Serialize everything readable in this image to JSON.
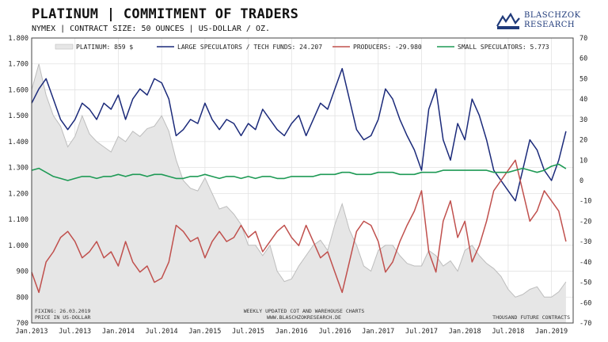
{
  "title": "PLATINUM | COMMITMENT OF TRADERS",
  "subtitle": "NYMEX | CONTRACT SIZE: 50 OUNCES | US-DOLLAR / OZ.",
  "logo": {
    "line1": "BLASCHZOK",
    "line2": "RESEARCH"
  },
  "notes": {
    "fixing": "FIXING: 26.03.2019",
    "price_unit": "PRICE IN US-DOLLAR",
    "center1": "WEEKLY UPDATED COT AND WAREHOUSE CHARTS",
    "center2": "WWW.BLASCHZOKRESEARCH.DE",
    "right": "THOUSAND FUTURE CONTRACTS"
  },
  "colors": {
    "platinum_fill": "#e6e6e6",
    "platinum_line": "#bdbdbd",
    "speculators": "#1b2a7a",
    "producers": "#c0504d",
    "small": "#1e9a55"
  },
  "chart_data": {
    "type": "line",
    "x_tick_labels": [
      "Jan.2013",
      "Jul.2013",
      "Jan.2014",
      "Jul.2014",
      "Jan.2015",
      "Jul.2015",
      "Jan.2016",
      "Jul.2016",
      "Jan.2017",
      "Jul.2017",
      "Jan.2018",
      "Jul.2018",
      "Jan.2019"
    ],
    "x_range": [
      "2013-01",
      "2019-04"
    ],
    "left_axis": {
      "range": [
        700,
        1800
      ],
      "ticks": [
        "1.800",
        "1.700",
        "1.600",
        "1.500",
        "1.400",
        "1.300",
        "1.200",
        "1.100",
        "1.000",
        "900",
        "800",
        "700"
      ]
    },
    "right_axis": {
      "range": [
        -70,
        70
      ],
      "ticks": [
        "70",
        "60",
        "50",
        "40",
        "30",
        "20",
        "10",
        "0",
        "-10",
        "-20",
        "-30",
        "-40",
        "-50",
        "-60",
        "-70"
      ]
    },
    "series": [
      {
        "name": "PLATINUM: 859 $",
        "axis": "left",
        "style": "area",
        "x": [
          "2013-01",
          "2013-02",
          "2013-03",
          "2013-04",
          "2013-05",
          "2013-06",
          "2013-07",
          "2013-08",
          "2013-09",
          "2013-10",
          "2013-11",
          "2013-12",
          "2014-01",
          "2014-02",
          "2014-03",
          "2014-04",
          "2014-05",
          "2014-06",
          "2014-07",
          "2014-08",
          "2014-09",
          "2014-10",
          "2014-11",
          "2014-12",
          "2015-01",
          "2015-02",
          "2015-03",
          "2015-04",
          "2015-05",
          "2015-06",
          "2015-07",
          "2015-08",
          "2015-09",
          "2015-10",
          "2015-11",
          "2015-12",
          "2016-01",
          "2016-02",
          "2016-03",
          "2016-04",
          "2016-05",
          "2016-06",
          "2016-07",
          "2016-08",
          "2016-09",
          "2016-10",
          "2016-11",
          "2016-12",
          "2017-01",
          "2017-02",
          "2017-03",
          "2017-04",
          "2017-05",
          "2017-06",
          "2017-07",
          "2017-08",
          "2017-09",
          "2017-10",
          "2017-11",
          "2017-12",
          "2018-01",
          "2018-02",
          "2018-03",
          "2018-04",
          "2018-05",
          "2018-06",
          "2018-07",
          "2018-08",
          "2018-09",
          "2018-10",
          "2018-11",
          "2018-12",
          "2019-01",
          "2019-02",
          "2019-03"
        ],
        "values": [
          1600,
          1700,
          1580,
          1500,
          1460,
          1380,
          1420,
          1500,
          1430,
          1400,
          1380,
          1360,
          1420,
          1400,
          1440,
          1420,
          1450,
          1460,
          1500,
          1440,
          1330,
          1250,
          1220,
          1210,
          1260,
          1200,
          1140,
          1150,
          1120,
          1080,
          1000,
          1000,
          960,
          1000,
          900,
          860,
          870,
          920,
          960,
          1000,
          1020,
          980,
          1080,
          1160,
          1060,
          1000,
          920,
          900,
          980,
          1000,
          1000,
          960,
          930,
          920,
          920,
          980,
          960,
          920,
          940,
          900,
          980,
          1000,
          960,
          930,
          910,
          880,
          830,
          800,
          810,
          830,
          840,
          800,
          800,
          820,
          859
        ]
      },
      {
        "name": "LARGE SPECULATORS / TECH FUNDS: 24.207",
        "axis": "right",
        "x": [
          "2013-01",
          "2013-02",
          "2013-03",
          "2013-04",
          "2013-05",
          "2013-06",
          "2013-07",
          "2013-08",
          "2013-09",
          "2013-10",
          "2013-11",
          "2013-12",
          "2014-01",
          "2014-02",
          "2014-03",
          "2014-04",
          "2014-05",
          "2014-06",
          "2014-07",
          "2014-08",
          "2014-09",
          "2014-10",
          "2014-11",
          "2014-12",
          "2015-01",
          "2015-02",
          "2015-03",
          "2015-04",
          "2015-05",
          "2015-06",
          "2015-07",
          "2015-08",
          "2015-09",
          "2015-10",
          "2015-11",
          "2015-12",
          "2016-01",
          "2016-02",
          "2016-03",
          "2016-04",
          "2016-05",
          "2016-06",
          "2016-07",
          "2016-08",
          "2016-09",
          "2016-10",
          "2016-11",
          "2016-12",
          "2017-01",
          "2017-02",
          "2017-03",
          "2017-04",
          "2017-05",
          "2017-06",
          "2017-07",
          "2017-08",
          "2017-09",
          "2017-10",
          "2017-11",
          "2017-12",
          "2018-01",
          "2018-02",
          "2018-03",
          "2018-04",
          "2018-05",
          "2018-06",
          "2018-07",
          "2018-08",
          "2018-09",
          "2018-10",
          "2018-11",
          "2018-12",
          "2019-01",
          "2019-02",
          "2019-03"
        ],
        "values": [
          38,
          45,
          50,
          40,
          30,
          25,
          30,
          38,
          35,
          30,
          38,
          35,
          42,
          30,
          40,
          45,
          42,
          50,
          48,
          40,
          22,
          25,
          30,
          28,
          38,
          30,
          25,
          30,
          28,
          22,
          28,
          25,
          35,
          30,
          25,
          22,
          28,
          32,
          22,
          30,
          38,
          35,
          45,
          55,
          40,
          25,
          20,
          22,
          30,
          45,
          40,
          30,
          22,
          15,
          5,
          35,
          45,
          20,
          10,
          28,
          20,
          40,
          32,
          20,
          5,
          0,
          -5,
          -10,
          5,
          20,
          15,
          5,
          0,
          10,
          24.2
        ]
      },
      {
        "name": "PRODUCERS: -29.980",
        "axis": "right",
        "x": [
          "2013-01",
          "2013-02",
          "2013-03",
          "2013-04",
          "2013-05",
          "2013-06",
          "2013-07",
          "2013-08",
          "2013-09",
          "2013-10",
          "2013-11",
          "2013-12",
          "2014-01",
          "2014-02",
          "2014-03",
          "2014-04",
          "2014-05",
          "2014-06",
          "2014-07",
          "2014-08",
          "2014-09",
          "2014-10",
          "2014-11",
          "2014-12",
          "2015-01",
          "2015-02",
          "2015-03",
          "2015-04",
          "2015-05",
          "2015-06",
          "2015-07",
          "2015-08",
          "2015-09",
          "2015-10",
          "2015-11",
          "2015-12",
          "2016-01",
          "2016-02",
          "2016-03",
          "2016-04",
          "2016-05",
          "2016-06",
          "2016-07",
          "2016-08",
          "2016-09",
          "2016-10",
          "2016-11",
          "2016-12",
          "2017-01",
          "2017-02",
          "2017-03",
          "2017-04",
          "2017-05",
          "2017-06",
          "2017-07",
          "2017-08",
          "2017-09",
          "2017-10",
          "2017-11",
          "2017-12",
          "2018-01",
          "2018-02",
          "2018-03",
          "2018-04",
          "2018-05",
          "2018-06",
          "2018-07",
          "2018-08",
          "2018-09",
          "2018-10",
          "2018-11",
          "2018-12",
          "2019-01",
          "2019-02",
          "2019-03"
        ],
        "values": [
          -45,
          -55,
          -40,
          -35,
          -28,
          -25,
          -30,
          -38,
          -35,
          -30,
          -38,
          -35,
          -42,
          -30,
          -40,
          -45,
          -42,
          -50,
          -48,
          -40,
          -22,
          -25,
          -30,
          -28,
          -38,
          -30,
          -25,
          -30,
          -28,
          -22,
          -28,
          -25,
          -35,
          -30,
          -25,
          -22,
          -28,
          -32,
          -22,
          -30,
          -38,
          -35,
          -45,
          -55,
          -40,
          -25,
          -20,
          -22,
          -30,
          -45,
          -40,
          -30,
          -22,
          -15,
          -5,
          -35,
          -45,
          -20,
          -10,
          -28,
          -20,
          -40,
          -32,
          -20,
          -5,
          0,
          5,
          10,
          -5,
          -20,
          -15,
          -5,
          -10,
          -15,
          -30
        ]
      },
      {
        "name": "SMALL SPECULATORS: 5.773",
        "axis": "right",
        "x": [
          "2013-01",
          "2013-02",
          "2013-03",
          "2013-04",
          "2013-05",
          "2013-06",
          "2013-07",
          "2013-08",
          "2013-09",
          "2013-10",
          "2013-11",
          "2013-12",
          "2014-01",
          "2014-02",
          "2014-03",
          "2014-04",
          "2014-05",
          "2014-06",
          "2014-07",
          "2014-08",
          "2014-09",
          "2014-10",
          "2014-11",
          "2014-12",
          "2015-01",
          "2015-02",
          "2015-03",
          "2015-04",
          "2015-05",
          "2015-06",
          "2015-07",
          "2015-08",
          "2015-09",
          "2015-10",
          "2015-11",
          "2015-12",
          "2016-01",
          "2016-02",
          "2016-03",
          "2016-04",
          "2016-05",
          "2016-06",
          "2016-07",
          "2016-08",
          "2016-09",
          "2016-10",
          "2016-11",
          "2016-12",
          "2017-01",
          "2017-02",
          "2017-03",
          "2017-04",
          "2017-05",
          "2017-06",
          "2017-07",
          "2017-08",
          "2017-09",
          "2017-10",
          "2017-11",
          "2017-12",
          "2018-01",
          "2018-02",
          "2018-03",
          "2018-04",
          "2018-05",
          "2018-06",
          "2018-07",
          "2018-08",
          "2018-09",
          "2018-10",
          "2018-11",
          "2018-12",
          "2019-01",
          "2019-02",
          "2019-03"
        ],
        "values": [
          5,
          6,
          4,
          2,
          1,
          0,
          1,
          2,
          2,
          1,
          2,
          2,
          3,
          2,
          3,
          3,
          2,
          3,
          3,
          2,
          1,
          1,
          2,
          2,
          3,
          2,
          1,
          2,
          2,
          1,
          2,
          1,
          2,
          2,
          1,
          1,
          2,
          2,
          2,
          2,
          3,
          3,
          3,
          4,
          4,
          3,
          3,
          3,
          4,
          4,
          4,
          3,
          3,
          3,
          4,
          4,
          4,
          5,
          5,
          5,
          5,
          5,
          5,
          5,
          4,
          4,
          4,
          5,
          6,
          5,
          4,
          5,
          7,
          8,
          5.8
        ]
      }
    ],
    "legend_placement": "top"
  }
}
